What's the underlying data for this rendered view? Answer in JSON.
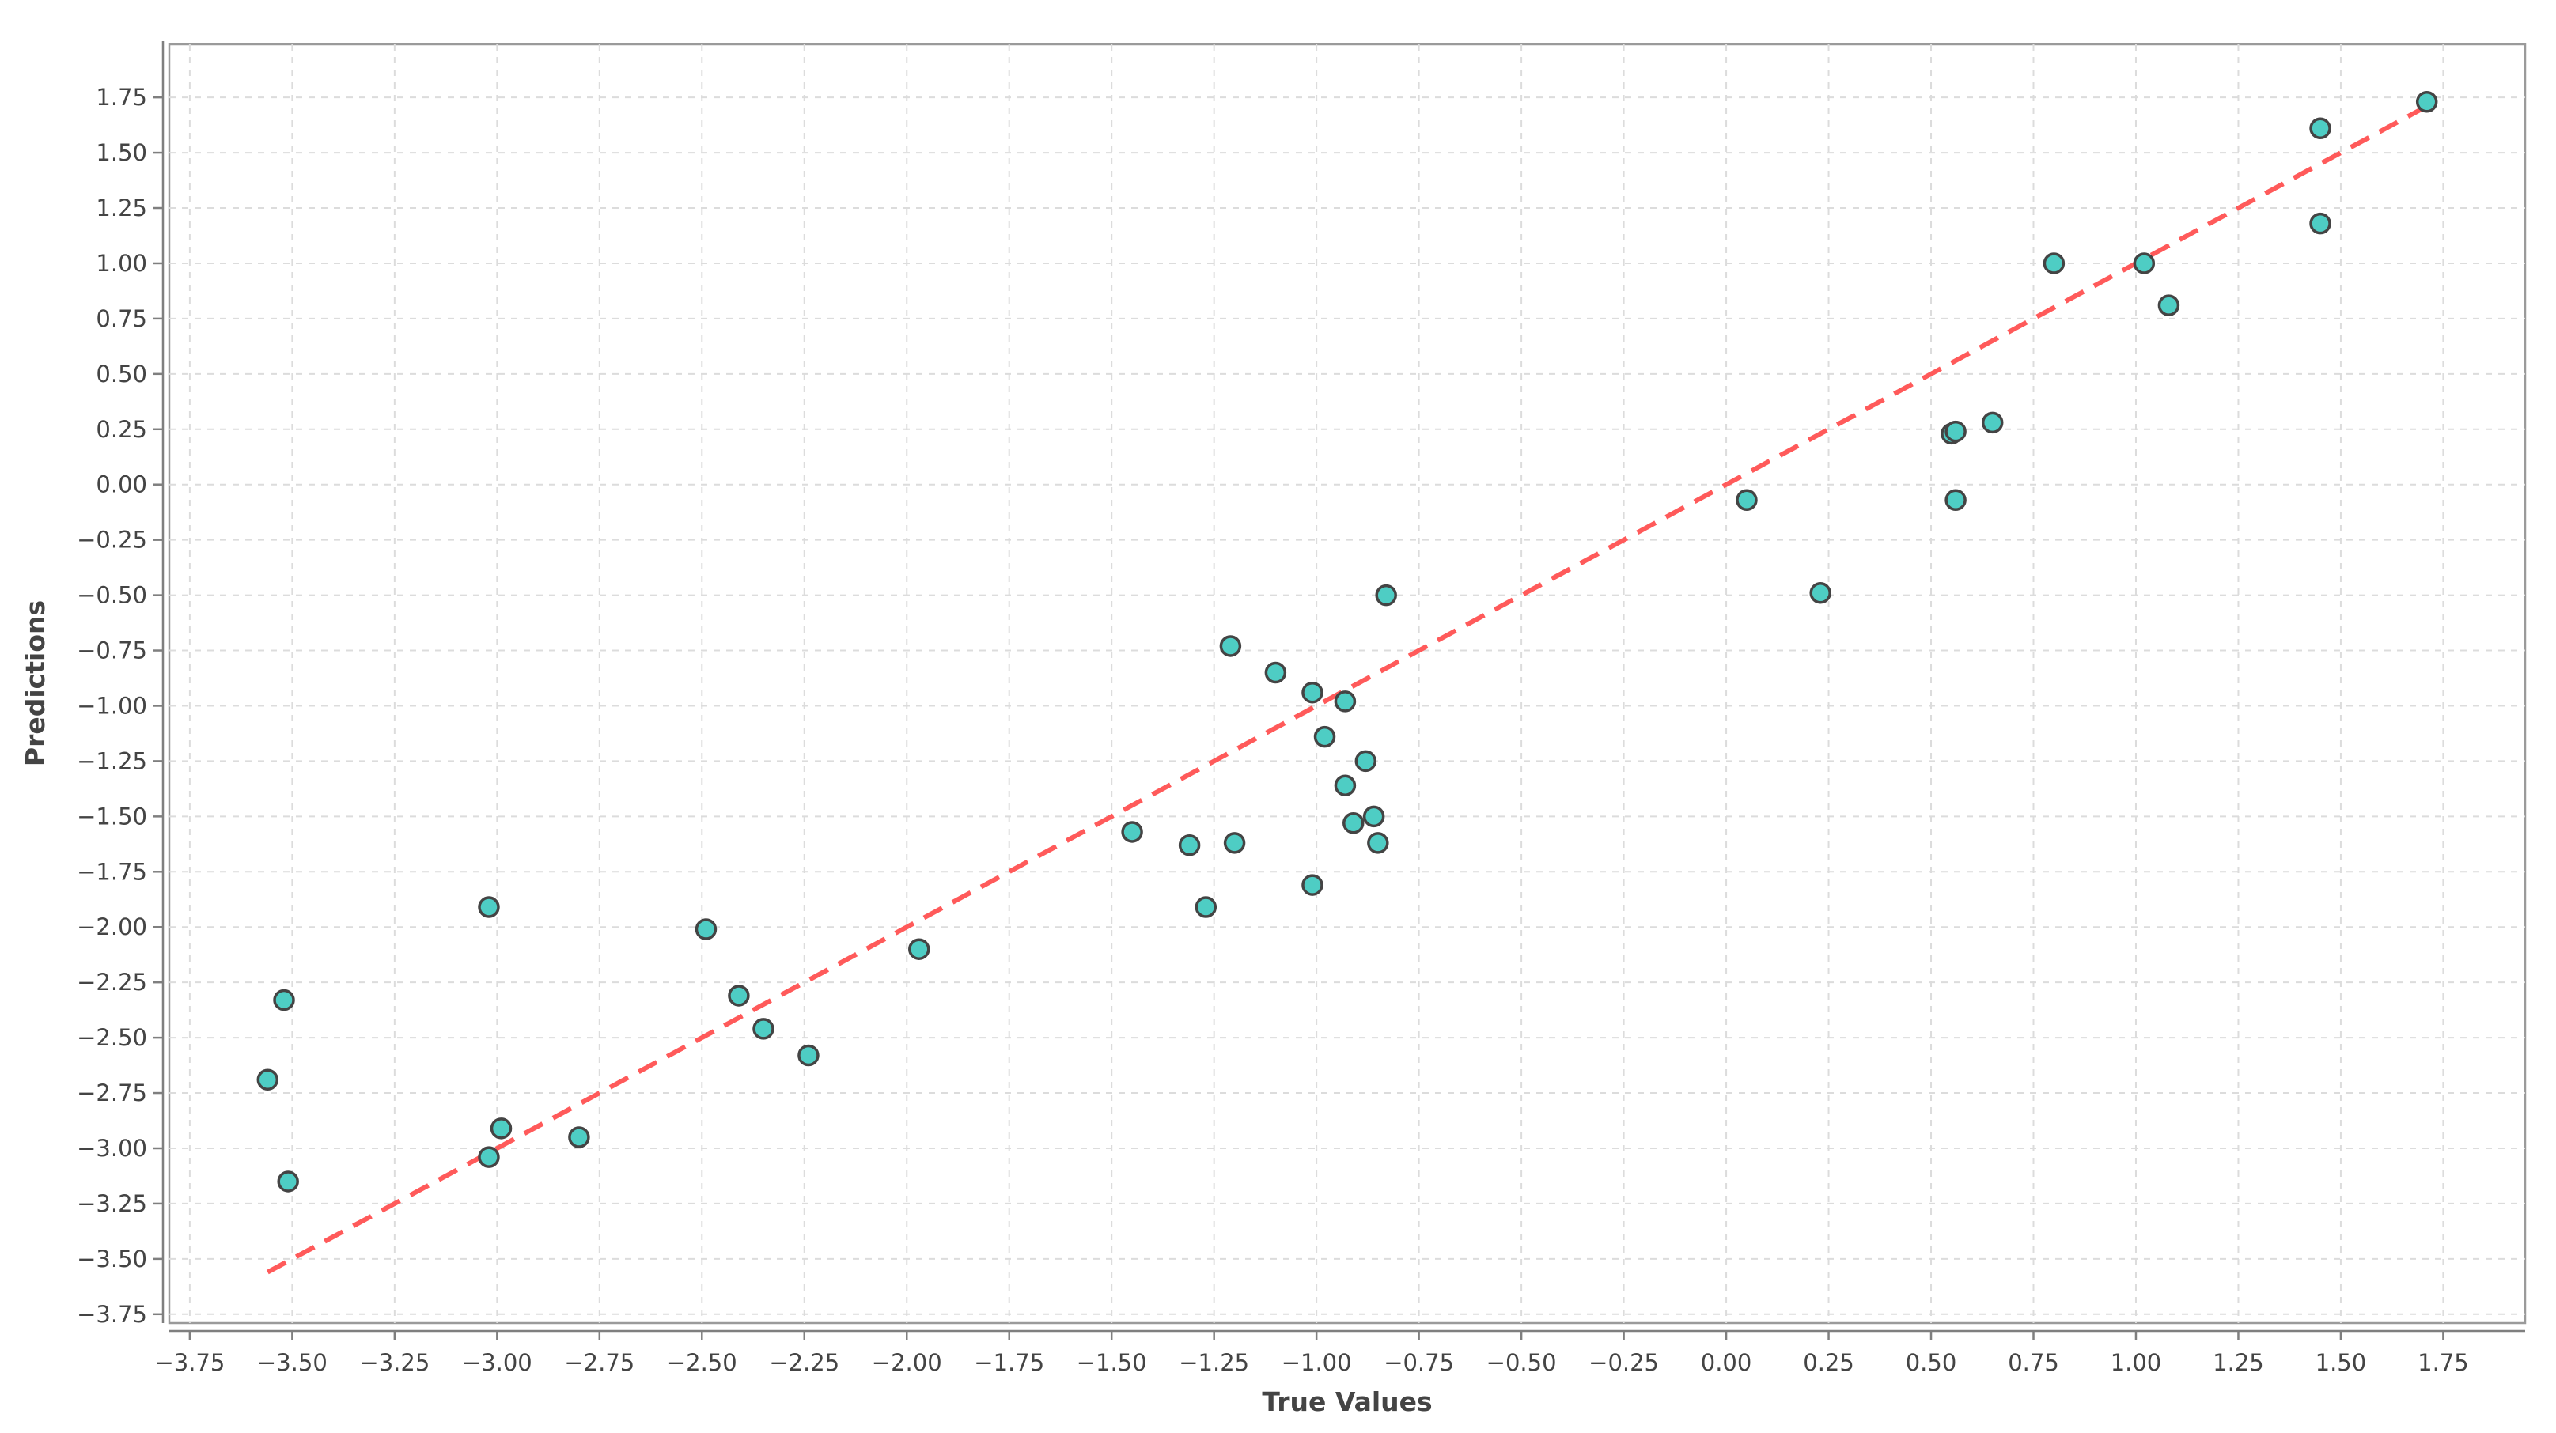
{
  "chart_data": {
    "type": "scatter",
    "title": "",
    "xlabel": "True Values",
    "ylabel": "Predictions",
    "xlim": [
      -3.8,
      1.95
    ],
    "ylim": [
      -3.79,
      1.99
    ],
    "grid": true,
    "x_ticks": [
      "−3.75",
      "−3.50",
      "−3.25",
      "−3.00",
      "−2.75",
      "−2.50",
      "−2.25",
      "−2.00",
      "−1.75",
      "−1.50",
      "−1.25",
      "−1.00",
      "−0.75",
      "−0.50",
      "−0.25",
      "0.00",
      "0.25",
      "0.50",
      "0.75",
      "1.00",
      "1.25",
      "1.50",
      "1.75"
    ],
    "y_ticks": [
      "1.75",
      "1.50",
      "1.25",
      "1.00",
      "0.75",
      "0.50",
      "0.25",
      "0.00",
      "−0.25",
      "−0.50",
      "−0.75",
      "−1.00",
      "−1.25",
      "−1.50",
      "−1.75",
      "−2.00",
      "−2.25",
      "−2.50",
      "−2.75",
      "−3.00",
      "−3.25",
      "−3.50",
      "−3.75"
    ],
    "point_color": "#4ecdc4",
    "point_edge_color": "#444444",
    "line_color": "#ff5a5a",
    "points": [
      {
        "x": -3.56,
        "y": -2.69
      },
      {
        "x": -3.52,
        "y": -2.33
      },
      {
        "x": -3.51,
        "y": -3.15
      },
      {
        "x": -3.02,
        "y": -1.91
      },
      {
        "x": -3.02,
        "y": -3.04
      },
      {
        "x": -2.99,
        "y": -2.91
      },
      {
        "x": -2.8,
        "y": -2.95
      },
      {
        "x": -2.49,
        "y": -2.01
      },
      {
        "x": -2.41,
        "y": -2.31
      },
      {
        "x": -2.35,
        "y": -2.46
      },
      {
        "x": -2.24,
        "y": -2.58
      },
      {
        "x": -1.97,
        "y": -2.1
      },
      {
        "x": -1.45,
        "y": -1.57
      },
      {
        "x": -1.31,
        "y": -1.63
      },
      {
        "x": -1.27,
        "y": -1.91
      },
      {
        "x": -1.21,
        "y": -0.73
      },
      {
        "x": -1.2,
        "y": -1.62
      },
      {
        "x": -1.1,
        "y": -0.85
      },
      {
        "x": -1.01,
        "y": -0.94
      },
      {
        "x": -1.01,
        "y": -1.81
      },
      {
        "x": -0.98,
        "y": -1.14
      },
      {
        "x": -0.93,
        "y": -0.98
      },
      {
        "x": -0.93,
        "y": -1.36
      },
      {
        "x": -0.91,
        "y": -1.53
      },
      {
        "x": -0.88,
        "y": -1.25
      },
      {
        "x": -0.86,
        "y": -1.5
      },
      {
        "x": -0.85,
        "y": -1.62
      },
      {
        "x": -0.83,
        "y": -0.5
      },
      {
        "x": 0.05,
        "y": -0.07
      },
      {
        "x": 0.23,
        "y": -0.49
      },
      {
        "x": 0.55,
        "y": 0.23
      },
      {
        "x": 0.56,
        "y": 0.24
      },
      {
        "x": 0.56,
        "y": -0.07
      },
      {
        "x": 0.65,
        "y": 0.28
      },
      {
        "x": 0.8,
        "y": 1.0
      },
      {
        "x": 1.02,
        "y": 1.0
      },
      {
        "x": 1.08,
        "y": 0.81
      },
      {
        "x": 1.45,
        "y": 1.61
      },
      {
        "x": 1.45,
        "y": 1.18
      },
      {
        "x": 1.71,
        "y": 1.73
      }
    ],
    "reference_line": [
      {
        "x": -3.56,
        "y": -3.56
      },
      {
        "x": 1.71,
        "y": 1.71
      }
    ]
  }
}
